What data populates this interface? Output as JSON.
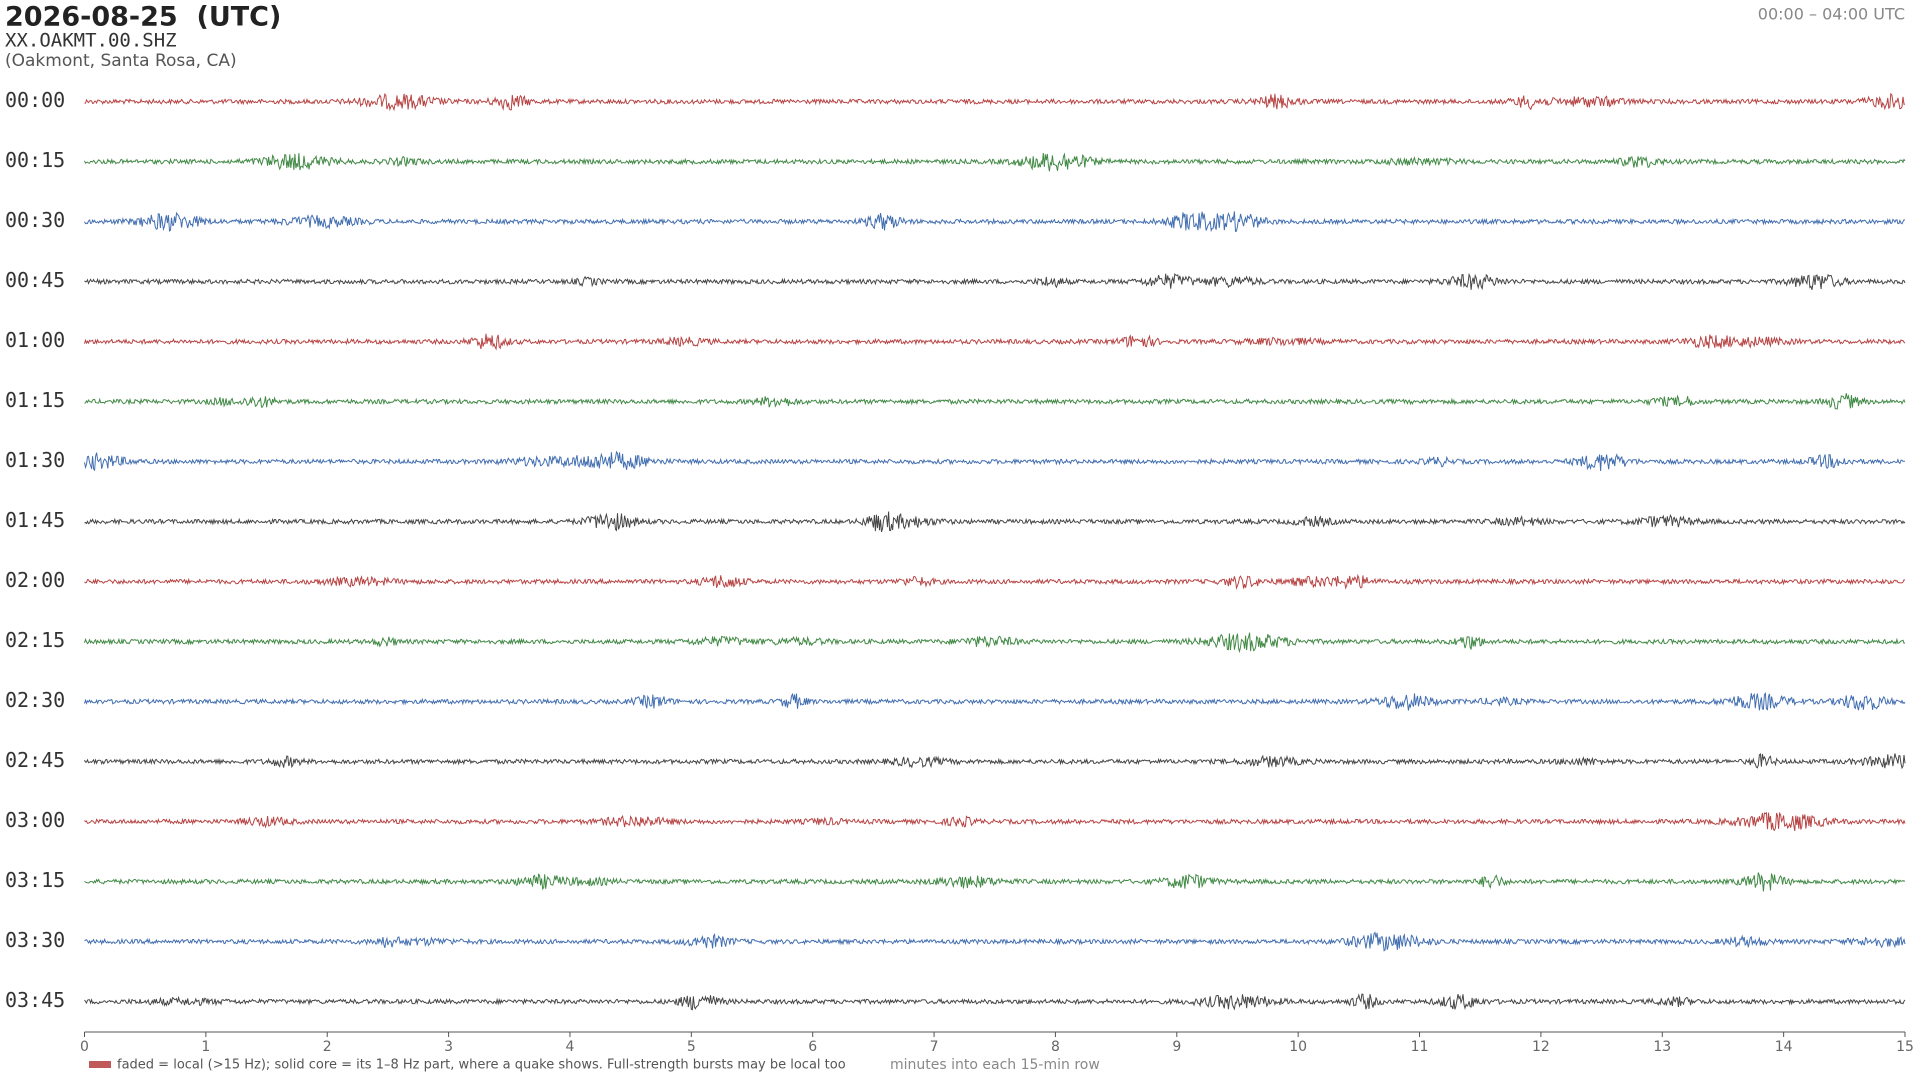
{
  "chart_data": {
    "type": "helicorder",
    "title": "2026-08-25  (UTC)",
    "station": "XX.OAKMT.00.SHZ",
    "location": "(Oakmont, Santa Rosa, CA)",
    "time_range": "00:00 – 04:00 UTC",
    "rows": [
      "00:00",
      "00:15",
      "00:30",
      "00:45",
      "01:00",
      "01:15",
      "01:30",
      "01:45",
      "02:00",
      "02:15",
      "02:30",
      "02:45",
      "03:00",
      "03:15",
      "03:30",
      "03:45"
    ],
    "colors": [
      "#b03030",
      "#2e7d32",
      "#2f5fa8",
      "#333333"
    ],
    "xlim": [
      0,
      15
    ],
    "xticks": [
      0,
      1,
      2,
      3,
      4,
      5,
      6,
      7,
      8,
      9,
      10,
      11,
      12,
      13,
      14,
      15
    ],
    "xlabel": "minutes into each 15-min row",
    "legend": "faded = local (>15 Hz); solid core = its 1–8 Hz part, where a quake shows. Full-strength bursts may be local too"
  }
}
